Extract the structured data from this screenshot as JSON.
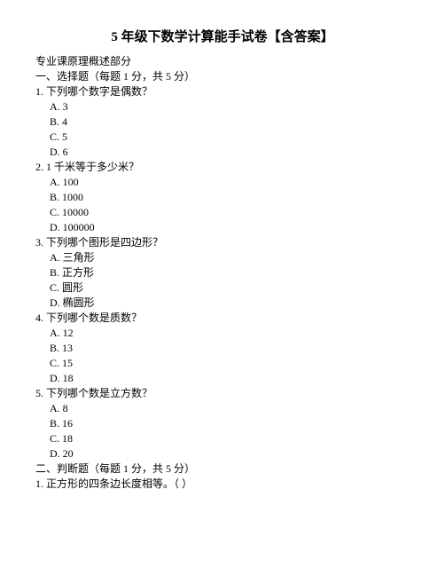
{
  "title": "5 年级下数学计算能手试卷【含答案】",
  "parts": {
    "subtitle": "专业课原理概述部分",
    "section1_header": "一、选择题（每题 1 分，共 5 分）",
    "section2_header": "二、判断题（每题 1 分，共 5 分）",
    "q1": {
      "question": "1. 下列哪个数字是偶数？",
      "a": "A. 3",
      "b": "B. 4",
      "c": "C. 5",
      "d": "D. 6"
    },
    "q2": {
      "question": "2. 1 千米等于多少米？",
      "a": "A. 100",
      "b": "B. 1000",
      "c": "C. 10000",
      "d": "D. 100000"
    },
    "q3": {
      "question": "3. 下列哪个图形是四边形？",
      "a": "A. 三角形",
      "b": "B. 正方形",
      "c": "C. 圆形",
      "d": "D. 椭圆形"
    },
    "q4": {
      "question": "4. 下列哪个数是质数？",
      "a": "A. 12",
      "b": "B. 13",
      "c": "C. 15",
      "d": "D. 18"
    },
    "q5": {
      "question": "5. 下列哪个数是立方数？",
      "a": "A. 8",
      "b": "B. 16",
      "c": "C. 18",
      "d": "D. 20"
    },
    "tf1": "1. 正方形的四条边长度相等。（    ）"
  }
}
